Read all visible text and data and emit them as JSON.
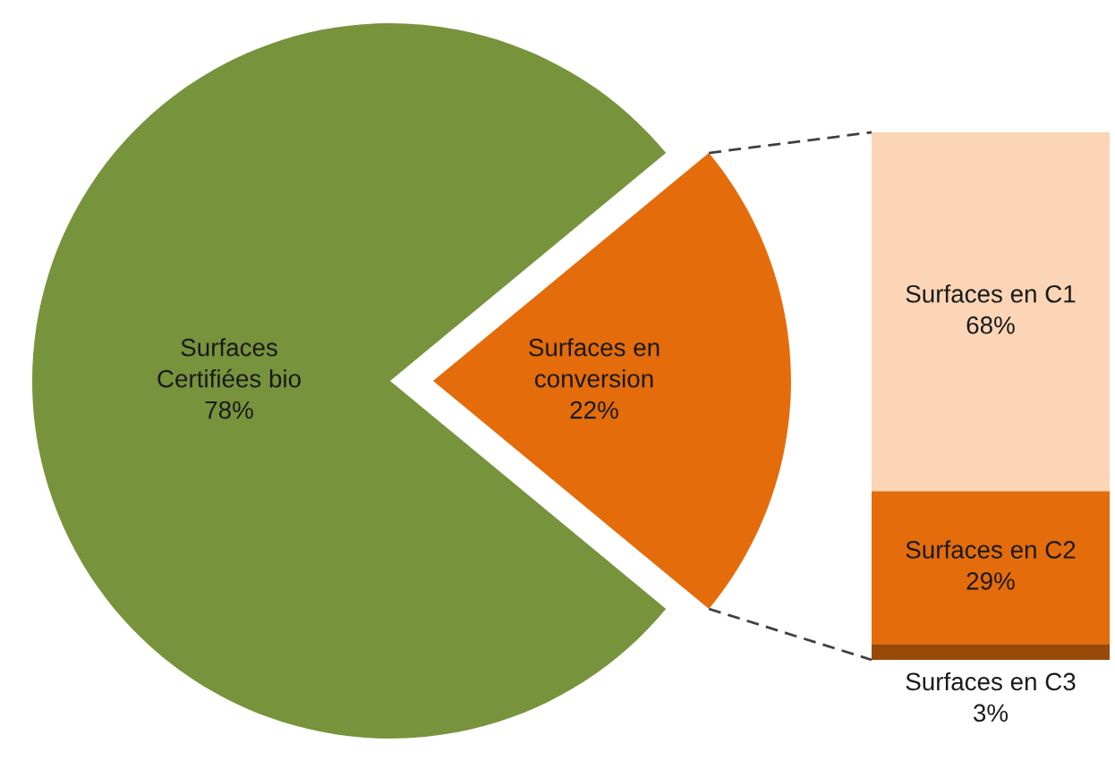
{
  "chart_data": [
    {
      "type": "pie",
      "categories": [
        "Surfaces\nCertifiées bio",
        "Surfaces en\nconversion"
      ],
      "values": [
        78,
        22
      ],
      "colors": [
        "#77933c",
        "#e46c0a"
      ],
      "value_labels": [
        "78%",
        "22%"
      ]
    },
    {
      "type": "bar",
      "stacked": true,
      "categories": [
        null
      ],
      "tick_labels": false,
      "series": [
        {
          "name": "Surfaces en C3",
          "color": "#984807",
          "values": [
            3
          ],
          "value_labels": [
            "3%"
          ]
        },
        {
          "name": "Surfaces en C2",
          "color": "#e46c0a",
          "values": [
            29
          ],
          "value_labels": [
            "29%"
          ]
        },
        {
          "name": "Surfaces en C1",
          "color": "#fbd5b5",
          "values": [
            68
          ],
          "value_labels": [
            "68%"
          ]
        }
      ]
    }
  ]
}
